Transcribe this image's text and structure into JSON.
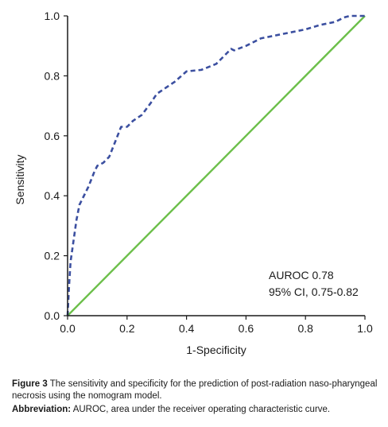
{
  "chart_data": {
    "type": "line",
    "xlabel": "1-Specificity",
    "ylabel": "Sensitivity",
    "xlim": [
      0,
      1
    ],
    "ylim": [
      0,
      1
    ],
    "x_ticks": [
      "0.0",
      "0.2",
      "0.4",
      "0.6",
      "0.8",
      "1.0"
    ],
    "y_ticks": [
      "0.0",
      "0.2",
      "0.4",
      "0.6",
      "0.8",
      "1.0"
    ],
    "grid": false,
    "legend": "none",
    "series": [
      {
        "style": "dashed",
        "color": "#3b4fa0",
        "x": [
          0.0,
          0.005,
          0.01,
          0.02,
          0.03,
          0.04,
          0.05,
          0.07,
          0.09,
          0.1,
          0.12,
          0.14,
          0.16,
          0.18,
          0.2,
          0.22,
          0.25,
          0.28,
          0.3,
          0.33,
          0.36,
          0.4,
          0.45,
          0.5,
          0.53,
          0.55,
          0.56,
          0.6,
          0.65,
          0.7,
          0.75,
          0.8,
          0.85,
          0.9,
          0.93,
          0.95,
          0.97,
          1.0
        ],
        "y": [
          0.0,
          0.1,
          0.18,
          0.25,
          0.32,
          0.37,
          0.39,
          0.43,
          0.48,
          0.5,
          0.51,
          0.53,
          0.58,
          0.63,
          0.63,
          0.65,
          0.67,
          0.71,
          0.74,
          0.76,
          0.78,
          0.815,
          0.82,
          0.84,
          0.87,
          0.89,
          0.885,
          0.9,
          0.925,
          0.935,
          0.945,
          0.955,
          0.97,
          0.98,
          0.995,
          1.0,
          1.0,
          1.0
        ]
      },
      {
        "style": "solid",
        "color": "#6cbf4a",
        "x": [
          0,
          1
        ],
        "y": [
          0,
          1
        ]
      }
    ],
    "annotations": [
      "AUROC 0.78",
      "95% CI, 0.75-0.82"
    ]
  },
  "caption": {
    "figure_label": "Figure 3",
    "figure_text": "The sensitivity and specificity for the prediction of post-radiation naso-pharyngeal necrosis using the nomogram model.",
    "abbrev_label": "Abbreviation:",
    "abbrev_text": "AUROC, area under the receiver operating characteristic curve."
  }
}
